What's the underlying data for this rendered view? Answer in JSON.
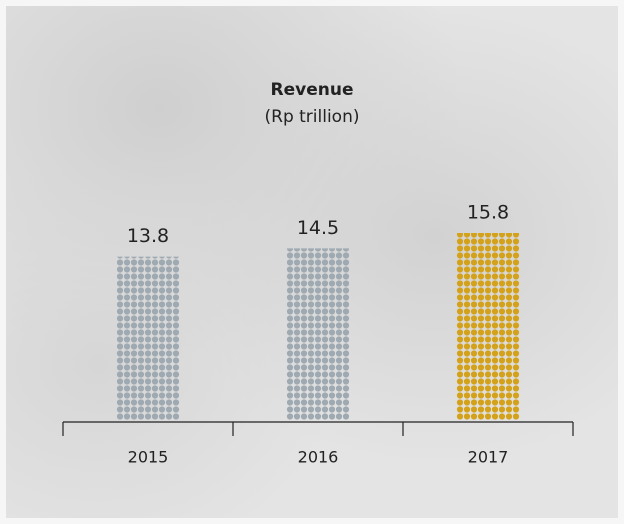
{
  "chart_data": {
    "type": "bar",
    "title": "Revenue",
    "subtitle": "(Rp trillion)",
    "categories": [
      "2015",
      "2016",
      "2017"
    ],
    "values": [
      13.8,
      14.5,
      15.8
    ],
    "colors": [
      "#9ea9b1",
      "#9ea9b1",
      "#d4a21a"
    ]
  }
}
